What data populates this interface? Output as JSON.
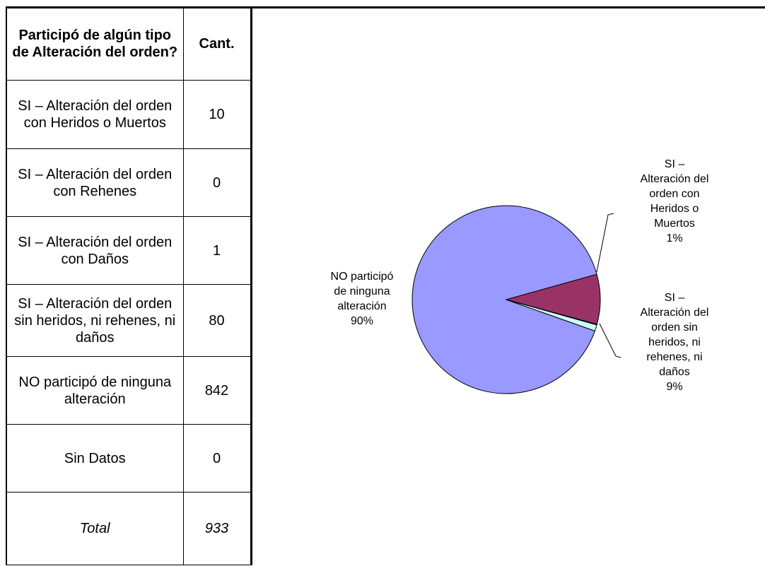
{
  "table": {
    "headers": [
      "Participó de algún tipo de Alteración del orden?",
      "Cant."
    ],
    "rows": [
      {
        "label": "SI – Alteración del orden con Heridos o Muertos",
        "value": "10"
      },
      {
        "label": "SI – Alteración del orden con Rehenes",
        "value": "0"
      },
      {
        "label": "SI – Alteración del orden con Daños",
        "value": "1"
      },
      {
        "label": "SI – Alteración del orden sin heridos, ni rehenes, ni daños",
        "value": "80"
      },
      {
        "label": "NO participó de ninguna alteración",
        "value": "842"
      },
      {
        "label": "Sin Datos",
        "value": "0"
      }
    ],
    "total": {
      "label": "Total",
      "value": "933"
    }
  },
  "chart_data": {
    "type": "pie",
    "slices": [
      {
        "label_lines": [
          "NO participó",
          "de ninguna",
          "alteración",
          "90%"
        ],
        "value": 842,
        "percent": 90,
        "color": "#9999ff"
      },
      {
        "label_lines": [
          "SI –",
          "Alteración del",
          "orden sin",
          "heridos, ni",
          "rehenes, ni",
          "daños",
          "9%"
        ],
        "value": 80,
        "percent": 9,
        "color": "#993366"
      },
      {
        "label_lines": [],
        "value": 1,
        "percent": 0,
        "color": "#ffffcc"
      },
      {
        "label_lines": [
          "SI –",
          "Alteración del",
          "orden con",
          "Heridos o",
          "Muertos",
          "1%"
        ],
        "value": 10,
        "percent": 1,
        "color": "#ccffff"
      }
    ],
    "colors": {
      "outline": "#000000"
    }
  }
}
